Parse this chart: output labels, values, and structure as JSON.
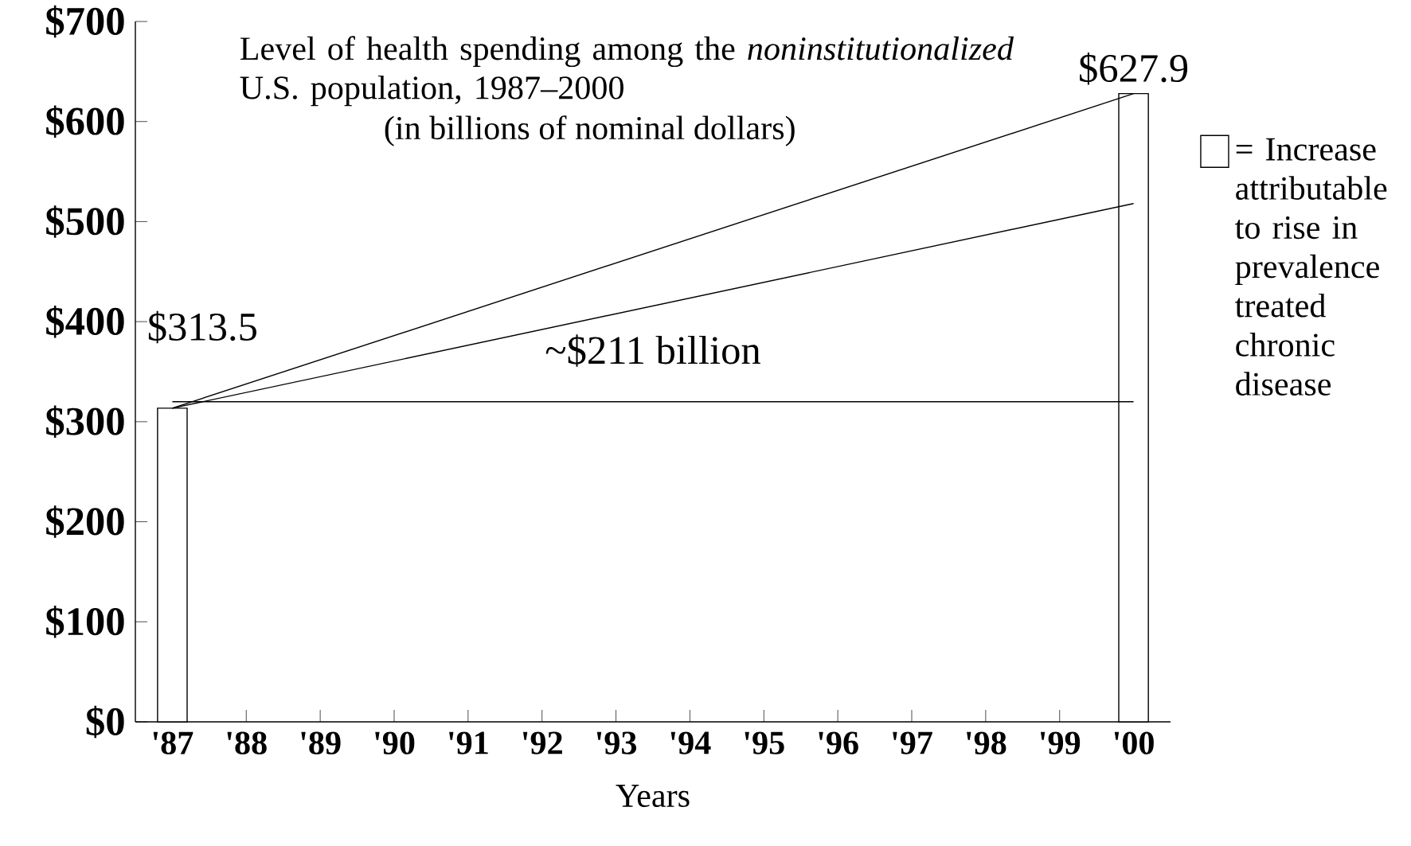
{
  "chart_data": {
    "type": "bar",
    "title": "Level of health spending among the *noninstitutionalized* U.S. population, 1987–2000",
    "subtitle": "(in billions of nominal dollars)",
    "xlabel": "Years",
    "annotations": [
      "~$211 billion"
    ],
    "xlim": [
      1986.5,
      2000.5
    ],
    "xticks": [
      {
        "value": 1987,
        "label": "'87"
      },
      {
        "value": 1988,
        "label": "'88"
      },
      {
        "value": 1989,
        "label": "'89"
      },
      {
        "value": 1990,
        "label": "'90"
      },
      {
        "value": 1991,
        "label": "'91"
      },
      {
        "value": 1992,
        "label": "'92"
      },
      {
        "value": 1993,
        "label": "'93"
      },
      {
        "value": 1994,
        "label": "'94"
      },
      {
        "value": 1995,
        "label": "'95"
      },
      {
        "value": 1996,
        "label": "'96"
      },
      {
        "value": 1997,
        "label": "'97"
      },
      {
        "value": 1998,
        "label": "'98"
      },
      {
        "value": 1999,
        "label": "'99"
      },
      {
        "value": 2000,
        "label": "'00"
      }
    ],
    "ylim": [
      0,
      700
    ],
    "yticks": [
      {
        "value": 0,
        "label": "$0"
      },
      {
        "value": 100,
        "label": "$100"
      },
      {
        "value": 200,
        "label": "$200"
      },
      {
        "value": 300,
        "label": "$300"
      },
      {
        "value": 400,
        "label": "$400"
      },
      {
        "value": 500,
        "label": "$500"
      },
      {
        "value": 600,
        "label": "$600"
      },
      {
        "value": 700,
        "label": "$700"
      }
    ],
    "legend": "right",
    "x": [
      1987,
      2000
    ],
    "series": [
      {
        "name": "= Increase attributable to rise in prevalence treated chronic disease",
        "color": "#ffffff",
        "values": [
          313.5,
          627.9
        ],
        "value_labels": [
          "$313.5",
          "$627.9"
        ]
      },
      {
        "type": "line",
        "color": "#000000",
        "values": [
          313.5,
          627.9
        ]
      },
      {
        "type": "line",
        "color": "#000000",
        "values": [
          313.5,
          518
        ]
      },
      {
        "type": "line",
        "color": "#000000",
        "values": [
          320,
          320
        ]
      }
    ]
  }
}
